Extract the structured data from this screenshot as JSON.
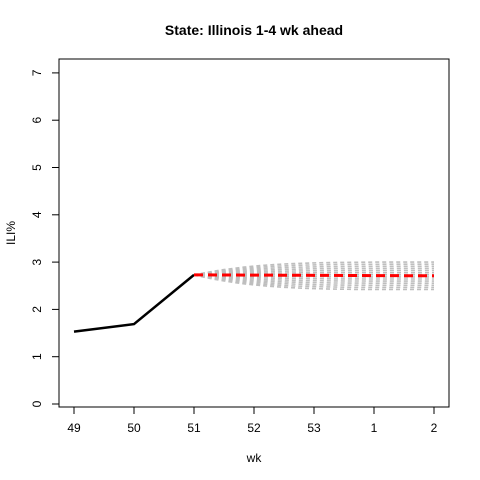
{
  "chart_data": {
    "type": "line",
    "title": "State: Illinois 1-4 wk ahead",
    "xlabel": "wk",
    "ylabel": "ILI%",
    "x_ticks": [
      "49",
      "50",
      "51",
      "52",
      "53",
      "1",
      "2"
    ],
    "ylim": [
      0,
      7
    ],
    "y_ticks": [
      "0",
      "1",
      "2",
      "3",
      "4",
      "5",
      "6",
      "7"
    ],
    "grid": false,
    "observed": {
      "x": [
        "49",
        "50",
        "51"
      ],
      "values": [
        1.53,
        1.69,
        2.73
      ],
      "color": "#000000"
    },
    "forecast_mean": {
      "x_start": "51",
      "x_end": "2",
      "start_value": 2.73,
      "end_value": 2.71,
      "color": "#ff0000"
    },
    "forecast_band": {
      "x_start": "51",
      "x_end": "2",
      "start_value": 2.73,
      "upper_end": 3.0,
      "lower_end": 2.42,
      "color": "#bebebe"
    }
  }
}
